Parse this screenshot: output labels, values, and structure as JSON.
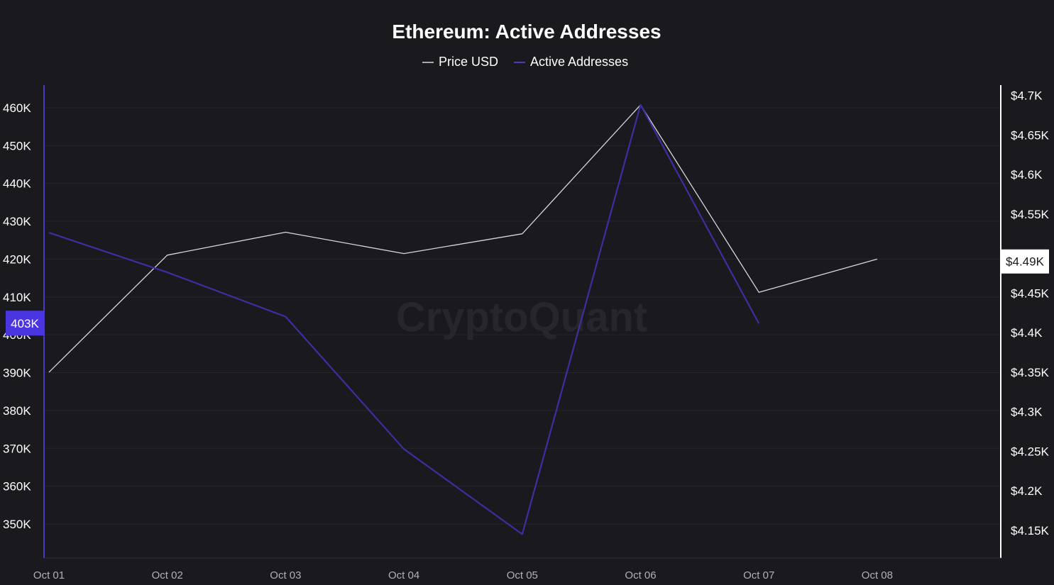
{
  "chart_data": {
    "type": "line",
    "title": "Ethereum: Active Addresses",
    "watermark": "CryptoQuant",
    "categories": [
      "Oct 01",
      "Oct 02",
      "Oct 03",
      "Oct 04",
      "Oct 05",
      "Oct 06",
      "Oct 07",
      "Oct 08"
    ],
    "legend": {
      "placement": "top-center",
      "entries": [
        "Price USD",
        "Active Addresses"
      ]
    },
    "left_axis": {
      "series": "Active Addresses",
      "ticks": [
        {
          "value": 350000,
          "label": "350K"
        },
        {
          "value": 360000,
          "label": "360K"
        },
        {
          "value": 370000,
          "label": "370K"
        },
        {
          "value": 380000,
          "label": "380K"
        },
        {
          "value": 390000,
          "label": "390K"
        },
        {
          "value": 400000,
          "label": "400K"
        },
        {
          "value": 410000,
          "label": "410K"
        },
        {
          "value": 420000,
          "label": "420K"
        },
        {
          "value": 430000,
          "label": "430K"
        },
        {
          "value": 440000,
          "label": "440K"
        },
        {
          "value": 450000,
          "label": "450K"
        },
        {
          "value": 460000,
          "label": "460K"
        }
      ],
      "ylim": [
        341000,
        466000
      ],
      "current_marker": {
        "value": 403000,
        "label": "403K"
      }
    },
    "right_axis": {
      "series": "Price USD",
      "ticks": [
        {
          "value": 4150,
          "label": "$4.15K"
        },
        {
          "value": 4200,
          "label": "$4.2K"
        },
        {
          "value": 4250,
          "label": "$4.25K"
        },
        {
          "value": 4300,
          "label": "$4.3K"
        },
        {
          "value": 4350,
          "label": "$4.35K"
        },
        {
          "value": 4400,
          "label": "$4.4K"
        },
        {
          "value": 4450,
          "label": "$4.45K"
        },
        {
          "value": 4500,
          "label": "$4.5K"
        },
        {
          "value": 4550,
          "label": "$4.55K"
        },
        {
          "value": 4600,
          "label": "$4.6K"
        },
        {
          "value": 4650,
          "label": "$4.65K"
        },
        {
          "value": 4700,
          "label": "$4.7K"
        }
      ],
      "hidden_tick_labels": [
        "$4.5K"
      ],
      "ylim": [
        4115,
        4713
      ],
      "current_marker": {
        "value": 4490,
        "label": "$4.49K"
      }
    },
    "series": [
      {
        "name": "Price USD",
        "axis": "right",
        "color": "#d8d8dc",
        "values": [
          4350,
          4498,
          4527,
          4500,
          4525,
          4688,
          4451,
          4493
        ]
      },
      {
        "name": "Active Addresses",
        "axis": "left",
        "color": "#3c2fa0",
        "values": [
          427000,
          416500,
          404800,
          369800,
          347300,
          460800,
          403000,
          null
        ]
      }
    ],
    "grid": true
  }
}
